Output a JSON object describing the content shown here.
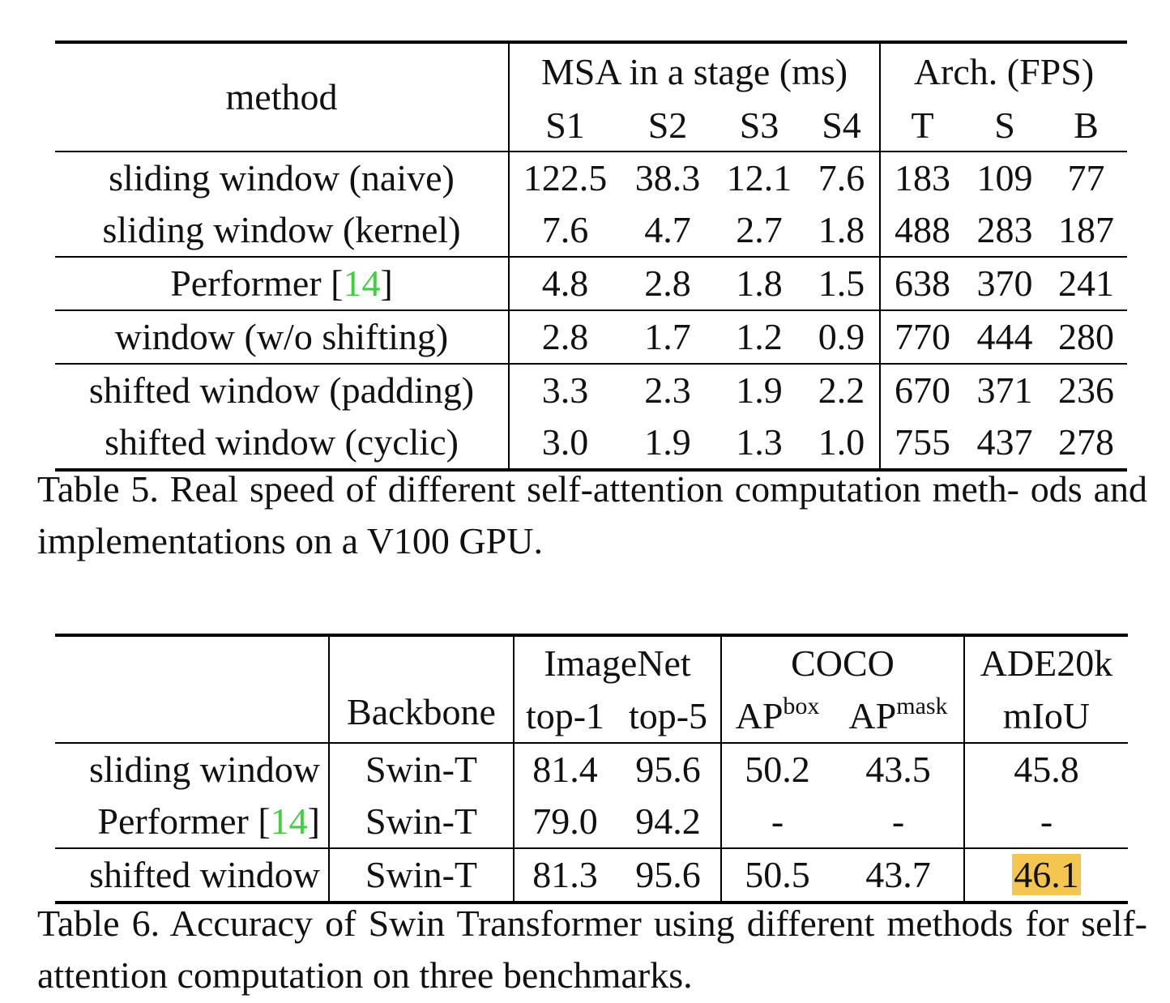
{
  "table5": {
    "headers": {
      "method": "method",
      "msa_group": "MSA in a stage (ms)",
      "arch_group": "Arch. (FPS)",
      "sub": [
        "S1",
        "S2",
        "S3",
        "S4",
        "T",
        "S",
        "B"
      ]
    },
    "rows": [
      {
        "method": "sliding window (naive)",
        "cite": "",
        "values": [
          "122.5",
          "38.3",
          "12.1",
          "7.6",
          "183",
          "109",
          "77"
        ]
      },
      {
        "method": "sliding window (kernel)",
        "cite": "",
        "values": [
          "7.6",
          "4.7",
          "2.7",
          "1.8",
          "488",
          "283",
          "187"
        ]
      },
      {
        "method": "Performer [",
        "cite": "14",
        "close": "]",
        "values": [
          "4.8",
          "2.8",
          "1.8",
          "1.5",
          "638",
          "370",
          "241"
        ]
      },
      {
        "method": "window (w/o shifting)",
        "cite": "",
        "values": [
          "2.8",
          "1.7",
          "1.2",
          "0.9",
          "770",
          "444",
          "280"
        ]
      },
      {
        "method": "shifted window (padding)",
        "cite": "",
        "values": [
          "3.3",
          "2.3",
          "1.9",
          "2.2",
          "670",
          "371",
          "236"
        ]
      },
      {
        "method": "shifted window (cyclic)",
        "cite": "",
        "values": [
          "3.0",
          "1.9",
          "1.3",
          "1.0",
          "755",
          "437",
          "278"
        ]
      }
    ],
    "caption": "Table 5. Real speed of different self-attention computation meth- ods and implementations on a V100 GPU."
  },
  "table6": {
    "headers": {
      "backbone": "Backbone",
      "imagenet": "ImageNet",
      "coco": "COCO",
      "ade": "ADE20k",
      "top1": "top-1",
      "top5": "top-5",
      "ap": "AP",
      "box": "box",
      "mask": "mask",
      "miou": "mIoU"
    },
    "rows": [
      {
        "method": "sliding window",
        "backbone": "Swin-T",
        "values": [
          "81.4",
          "95.6",
          "50.2",
          "43.5",
          "45.8"
        ]
      },
      {
        "method": "Performer [",
        "cite": "14",
        "close": "]",
        "backbone": "Swin-T",
        "values": [
          "79.0",
          "94.2",
          "-",
          "-",
          "-"
        ]
      },
      {
        "method": "shifted window",
        "backbone": "Swin-T",
        "values": [
          "81.3",
          "95.6",
          "50.5",
          "43.7",
          "46.1"
        ]
      }
    ],
    "highlight_color": "#f4c54f",
    "cite_color": "#3fcf3f",
    "caption": "Table 6. Accuracy of Swin Transformer using different methods for self-attention computation on three benchmarks."
  }
}
